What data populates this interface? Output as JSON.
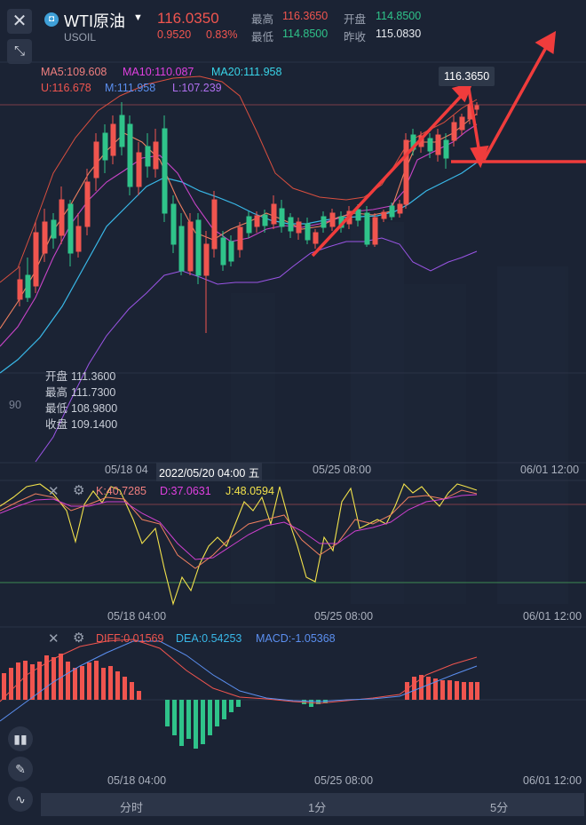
{
  "header": {
    "name": "WTI原油",
    "code": "USOIL",
    "price": "116.0350",
    "change": "0.9520",
    "change_pct": "0.83%",
    "high_label": "最高",
    "high": "116.3650",
    "open_label": "开盘",
    "open": "114.8500",
    "low_label": "最低",
    "low": "114.8500",
    "prev_label": "昨收",
    "prev_close": "115.0830"
  },
  "ma": {
    "ma5": "MA5:109.608",
    "ma10": "MA10:110.087",
    "ma20": "MA20:111.958",
    "boll_u": "U:116.678",
    "boll_m": "M:111.958",
    "boll_l": "L:107.239"
  },
  "price_tag": "116.3650",
  "ohlc_tooltip": {
    "open": [
      "开盘",
      "111.3600"
    ],
    "high": [
      "最高",
      "111.7300"
    ],
    "low": [
      "最低",
      "108.9800"
    ],
    "close": [
      "收盘",
      "109.1400"
    ]
  },
  "axis_left_label": "90",
  "main_time_ticks": {
    "t1": "05/18 04",
    "t_hl": "2022/05/20 04:00 五",
    "t2": "05/25 08:00",
    "t3": "06/01 12:00"
  },
  "kdj": {
    "k": "K:40.7285",
    "d": "D:37.0631",
    "j": "J:48.0594",
    "ticks": [
      "05/18 04:00",
      "05/25 08:00",
      "06/01 12:00"
    ]
  },
  "macd": {
    "diff": "DIFF:0.01569",
    "dea": "DEA:0.54253",
    "macd": "MACD:-1.05368",
    "ticks": [
      "05/18 04:00",
      "05/25 08:00",
      "06/01 12:00"
    ]
  },
  "tabs": [
    "分时",
    "1分",
    "5分"
  ],
  "colors": {
    "bg": "#1b2334",
    "up": "#f0554f",
    "down": "#2fc38a",
    "ma5": "#f0554f",
    "ma10": "#e040e0",
    "ma20": "#39d4e8",
    "mid": "#5b8ff0",
    "lower": "#9b55e6",
    "j": "#f2e24b",
    "arrow": "#f03c3c"
  }
}
